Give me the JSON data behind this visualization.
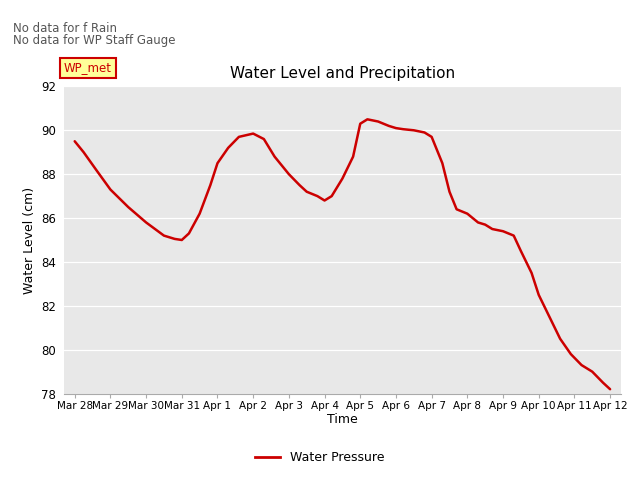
{
  "title": "Water Level and Precipitation",
  "xlabel": "Time",
  "ylabel": "Water Level (cm)",
  "ylim": [
    78,
    92
  ],
  "yticks": [
    78,
    80,
    82,
    84,
    86,
    88,
    90,
    92
  ],
  "background_color": "#e8e8e8",
  "line_color": "#cc0000",
  "line_width": 1.8,
  "annotation_text1": "No data for f Rain",
  "annotation_text2": "No data for WP Staff Gauge",
  "legend_label": "WP_met",
  "legend_label2": "Water Pressure",
  "x_labels": [
    "Mar 28",
    "Mar 29",
    "Mar 30",
    "Mar 31",
    "Apr 1",
    "Apr 2",
    "Apr 3",
    "Apr 4",
    "Apr 5",
    "Apr 6",
    "Apr 7",
    "Apr 8",
    "Apr 9",
    "Apr 10",
    "Apr 11",
    "Apr 12"
  ],
  "x_values": [
    0,
    1,
    2,
    3,
    4,
    5,
    6,
    7,
    8,
    9,
    10,
    11,
    12,
    13,
    14,
    15
  ],
  "x_data": [
    0,
    0.25,
    0.6,
    1.0,
    1.5,
    2.0,
    2.5,
    2.8,
    3.0,
    3.2,
    3.5,
    3.8,
    4.0,
    4.3,
    4.6,
    5.0,
    5.3,
    5.6,
    6.0,
    6.3,
    6.5,
    6.8,
    7.0,
    7.2,
    7.5,
    7.8,
    8.0,
    8.2,
    8.5,
    8.8,
    9.0,
    9.2,
    9.5,
    9.8,
    10.0,
    10.3,
    10.5,
    10.7,
    11.0,
    11.3,
    11.5,
    11.7,
    12.0,
    12.3,
    12.5,
    12.8,
    13.0,
    13.3,
    13.6,
    13.9,
    14.2,
    14.5,
    14.8,
    15.0
  ],
  "y_data": [
    89.5,
    89.0,
    88.2,
    87.3,
    86.5,
    85.8,
    85.2,
    85.05,
    85.0,
    85.3,
    86.2,
    87.5,
    88.5,
    89.2,
    89.7,
    89.85,
    89.6,
    88.8,
    88.0,
    87.5,
    87.2,
    87.0,
    86.8,
    87.0,
    87.8,
    88.8,
    90.3,
    90.5,
    90.4,
    90.2,
    90.1,
    90.05,
    90.0,
    89.9,
    89.7,
    88.5,
    87.2,
    86.4,
    86.2,
    85.8,
    85.7,
    85.5,
    85.4,
    85.2,
    84.5,
    83.5,
    82.5,
    81.5,
    80.5,
    79.8,
    79.3,
    79.0,
    78.5,
    78.2
  ]
}
